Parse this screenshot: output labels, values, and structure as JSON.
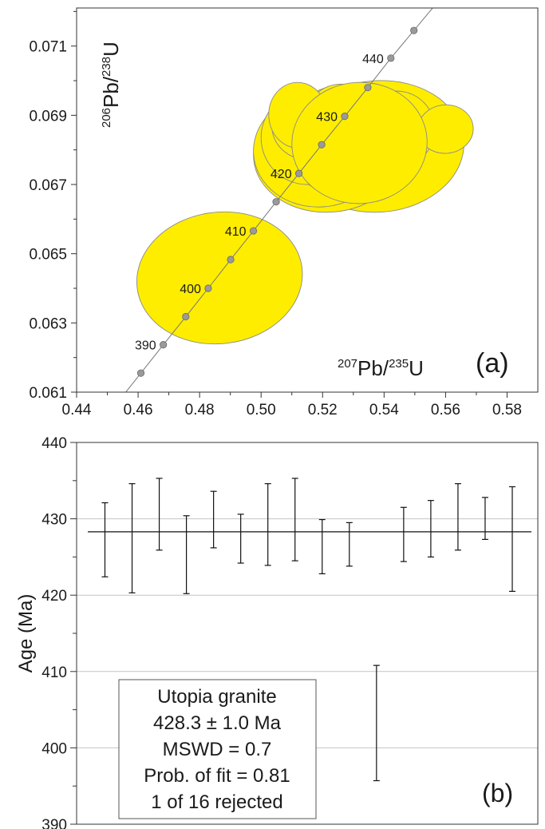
{
  "chart_data": [
    {
      "type": "scatter",
      "subtype": "concordia",
      "panel_label": "(a)",
      "xlabel": {
        "base": "Pb/",
        "sup1": "207",
        "sup2": "235",
        "tail": "U"
      },
      "ylabel": {
        "base": "Pb/",
        "sup1": "206",
        "sup2": "238",
        "tail": "U"
      },
      "xlim": [
        0.44,
        0.59
      ],
      "ylim": [
        0.061,
        0.0721
      ],
      "x_ticks": [
        "0.44",
        "0.46",
        "0.48",
        "0.50",
        "0.52",
        "0.54",
        "0.56",
        "0.58"
      ],
      "y_ticks": [
        "0.061",
        "0.063",
        "0.065",
        "0.067",
        "0.069",
        "0.071"
      ],
      "concordia_points": [
        {
          "age": 385,
          "x": 0.4609,
          "y": 0.06155
        },
        {
          "age": 390,
          "x": 0.4682,
          "y": 0.06237,
          "label": "390"
        },
        {
          "age": 395,
          "x": 0.4755,
          "y": 0.06318
        },
        {
          "age": 400,
          "x": 0.4828,
          "y": 0.064,
          "label": "400"
        },
        {
          "age": 405,
          "x": 0.4901,
          "y": 0.06483
        },
        {
          "age": 410,
          "x": 0.4975,
          "y": 0.06566,
          "label": "410"
        },
        {
          "age": 415,
          "x": 0.5049,
          "y": 0.0665
        },
        {
          "age": 420,
          "x": 0.5123,
          "y": 0.06732,
          "label": "420"
        },
        {
          "age": 425,
          "x": 0.5197,
          "y": 0.06815
        },
        {
          "age": 430,
          "x": 0.5272,
          "y": 0.06897,
          "label": "430"
        },
        {
          "age": 435,
          "x": 0.5347,
          "y": 0.0698
        },
        {
          "age": 440,
          "x": 0.5422,
          "y": 0.07065,
          "label": "440"
        },
        {
          "age": 445,
          "x": 0.5497,
          "y": 0.07145
        }
      ],
      "error_ellipses": [
        {
          "cx": 0.4865,
          "cy": 0.0643,
          "rx": 0.027,
          "ry": 0.0019,
          "tilt_deg": -7
        },
        {
          "cx": 0.538,
          "cy": 0.0681,
          "rx": 0.028,
          "ry": 0.0019,
          "tilt_deg": -4
        },
        {
          "cx": 0.522,
          "cy": 0.0679,
          "rx": 0.0245,
          "ry": 0.0017,
          "tilt_deg": -4
        },
        {
          "cx": 0.519,
          "cy": 0.068,
          "rx": 0.0215,
          "ry": 0.00165,
          "tilt_deg": -4
        },
        {
          "cx": 0.528,
          "cy": 0.0683,
          "rx": 0.021,
          "ry": 0.0016,
          "tilt_deg": -4
        },
        {
          "cx": 0.515,
          "cy": 0.06835,
          "rx": 0.015,
          "ry": 0.00135,
          "tilt_deg": -4
        },
        {
          "cx": 0.534,
          "cy": 0.0685,
          "rx": 0.015,
          "ry": 0.0014,
          "tilt_deg": -4
        },
        {
          "cx": 0.516,
          "cy": 0.0687,
          "rx": 0.0125,
          "ry": 0.001,
          "tilt_deg": -4
        },
        {
          "cx": 0.526,
          "cy": 0.0688,
          "rx": 0.012,
          "ry": 0.0011,
          "tilt_deg": -4
        },
        {
          "cx": 0.52,
          "cy": 0.0682,
          "rx": 0.01,
          "ry": 0.0008,
          "tilt_deg": -4
        },
        {
          "cx": 0.528,
          "cy": 0.0683,
          "rx": 0.01,
          "ry": 0.0008,
          "tilt_deg": -4
        },
        {
          "cx": 0.512,
          "cy": 0.069,
          "rx": 0.0095,
          "ry": 0.00095,
          "tilt_deg": -4
        },
        {
          "cx": 0.544,
          "cy": 0.0686,
          "rx": 0.0125,
          "ry": 0.0011,
          "tilt_deg": -4
        },
        {
          "cx": 0.56,
          "cy": 0.0686,
          "rx": 0.009,
          "ry": 0.0007,
          "tilt_deg": -4
        },
        {
          "cx": 0.533,
          "cy": 0.0688,
          "rx": 0.009,
          "ry": 0.0009,
          "tilt_deg": -4
        },
        {
          "cx": 0.532,
          "cy": 0.0682,
          "rx": 0.022,
          "ry": 0.00175,
          "tilt_deg": -4
        }
      ],
      "ellipse_fill": "#ffed00",
      "ellipse_stroke": "#8a8a8a",
      "point_fill": "#9a9a9a"
    },
    {
      "type": "bar",
      "subtype": "error-bars",
      "panel_label": "(b)",
      "ylabel": "Age (Ma)",
      "ylim": [
        390,
        440
      ],
      "y_ticks": [
        "390",
        "400",
        "410",
        "420",
        "430",
        "440"
      ],
      "grid": true,
      "mean_line": 428.3,
      "series": [
        {
          "low": 422.4,
          "high": 432.1
        },
        {
          "low": 420.3,
          "high": 434.6
        },
        {
          "low": 425.9,
          "high": 435.3
        },
        {
          "low": 420.2,
          "high": 430.4
        },
        {
          "low": 426.2,
          "high": 433.6
        },
        {
          "low": 424.2,
          "high": 430.6
        },
        {
          "low": 423.9,
          "high": 434.6
        },
        {
          "low": 424.5,
          "high": 435.3
        },
        {
          "low": 422.8,
          "high": 429.9
        },
        {
          "low": 423.8,
          "high": 429.5
        },
        {
          "low": 395.7,
          "high": 410.8,
          "rejected": true
        },
        {
          "low": 424.4,
          "high": 431.5
        },
        {
          "low": 425.0,
          "high": 432.4
        },
        {
          "low": 425.9,
          "high": 434.6
        },
        {
          "low": 427.3,
          "high": 432.8
        },
        {
          "low": 420.5,
          "high": 434.2
        }
      ],
      "annotation": {
        "line1": "Utopia granite",
        "line2": "428.3 ± 1.0 Ma",
        "line3": "MSWD = 0.7",
        "line4": "Prob. of fit = 0.81",
        "line5": "1 of 16 rejected"
      }
    }
  ]
}
